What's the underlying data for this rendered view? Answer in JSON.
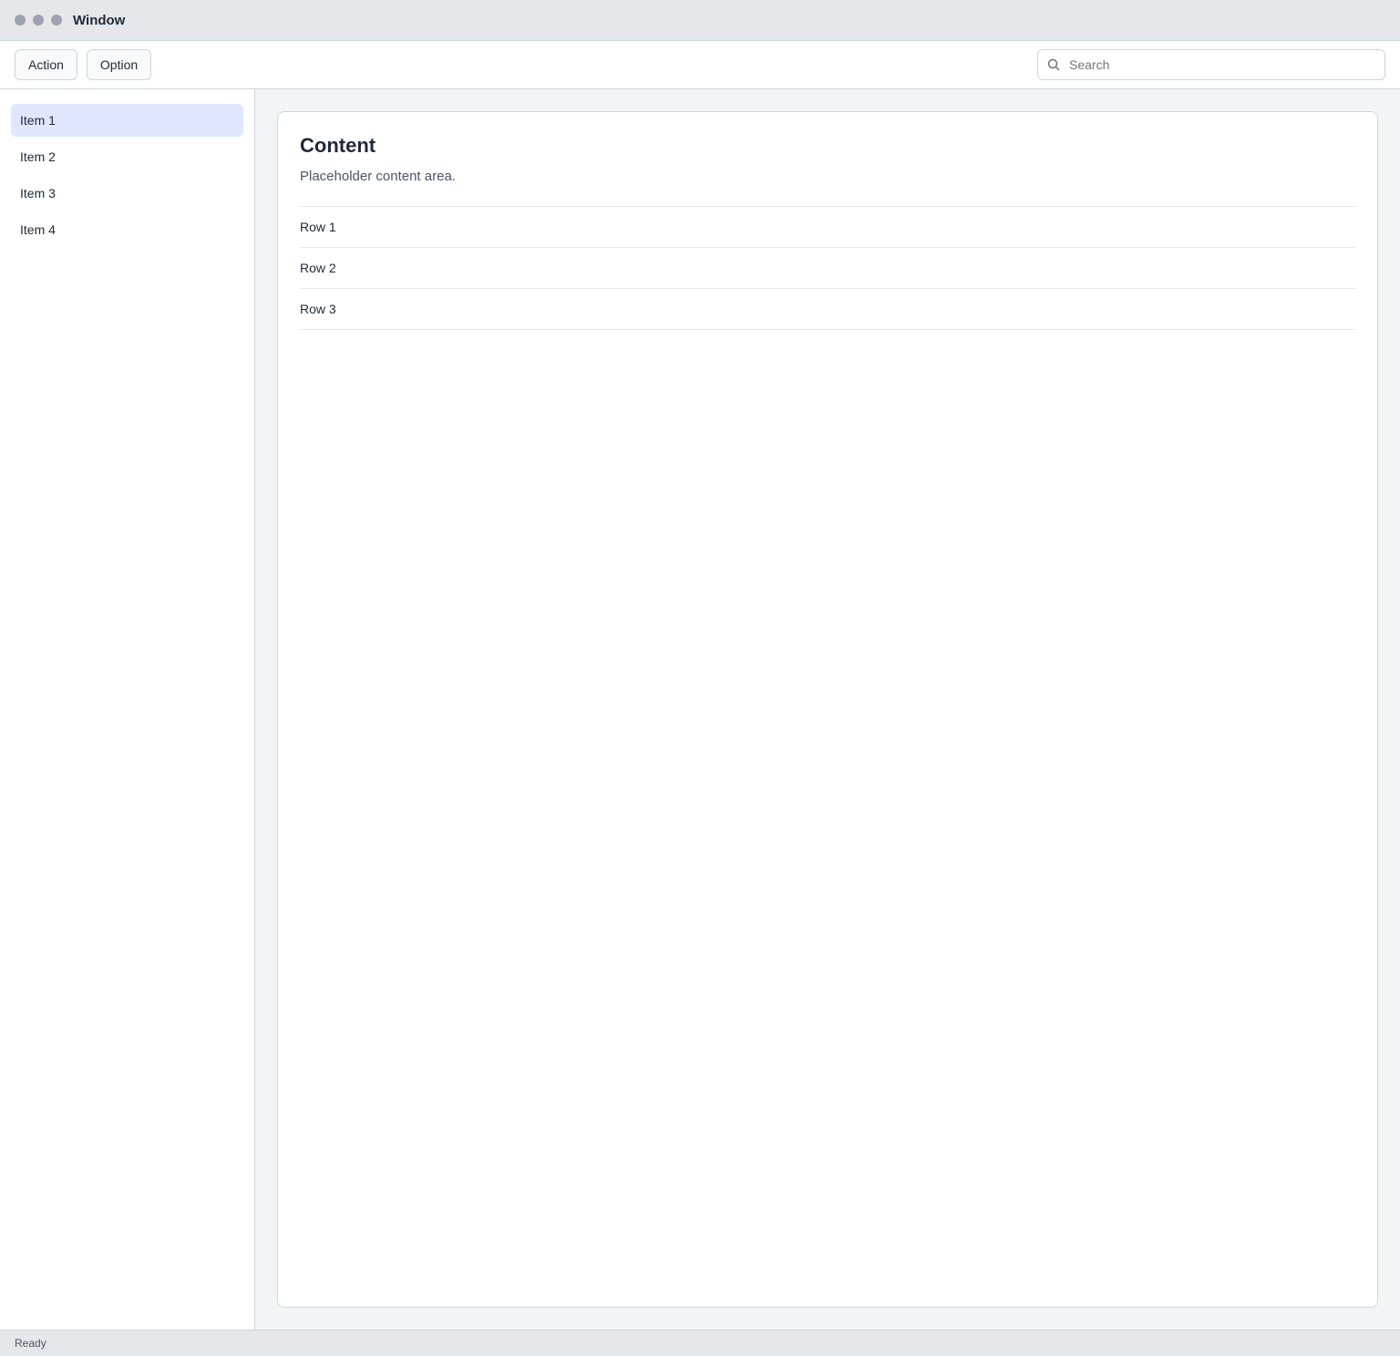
{
  "window": {
    "title": "Window"
  },
  "toolbar": {
    "primary_label": "Action",
    "secondary_label": "Option",
    "search_placeholder": "Search"
  },
  "sidebar": {
    "items": [
      {
        "label": "Item 1"
      },
      {
        "label": "Item 2"
      },
      {
        "label": "Item 3"
      },
      {
        "label": "Item 4"
      }
    ]
  },
  "main": {
    "heading": "Content",
    "body": "Placeholder content area.",
    "rows": [
      {
        "label": "Row 1"
      },
      {
        "label": "Row 2"
      },
      {
        "label": "Row 3"
      }
    ]
  },
  "status": {
    "text": "Ready"
  }
}
